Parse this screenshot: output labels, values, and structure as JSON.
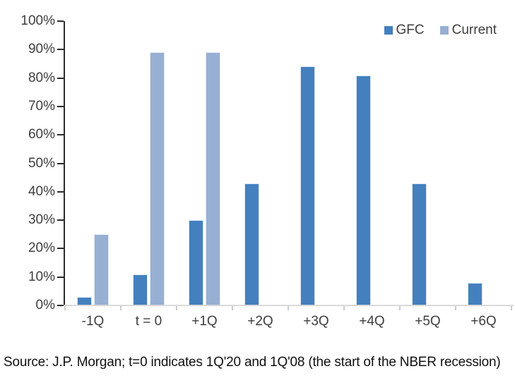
{
  "chart_data": {
    "type": "bar",
    "title": "",
    "categories": [
      "-1Q",
      "t = 0",
      "+1Q",
      "+2Q",
      "+3Q",
      "+4Q",
      "+5Q",
      "+6Q"
    ],
    "series": [
      {
        "name": "GFC",
        "color": "#4480BE",
        "values": [
          3,
          11,
          30,
          43,
          84,
          81,
          43,
          8
        ]
      },
      {
        "name": "Current",
        "color": "#97AFD2",
        "values": [
          25,
          89,
          89,
          null,
          null,
          null,
          null,
          null
        ]
      }
    ],
    "xlabel": "",
    "ylabel": "",
    "ylim": [
      0,
      100
    ],
    "ytick_step": 10,
    "ytick_suffix": "%",
    "grid": false,
    "legend_position": "top-right",
    "colors": {
      "y_axis": "#2b2b2b",
      "y_tick": "#2b2b2b",
      "x_axis": "#d9d9d9",
      "x_tick": "#cdcdcd",
      "tick_label": "#3e3e3e",
      "source_text": "#111111"
    }
  },
  "footer": {
    "source_text": "Source: J.P. Morgan; t=0 indicates 1Q'20 and 1Q'08 (the start of the NBER recession)"
  }
}
